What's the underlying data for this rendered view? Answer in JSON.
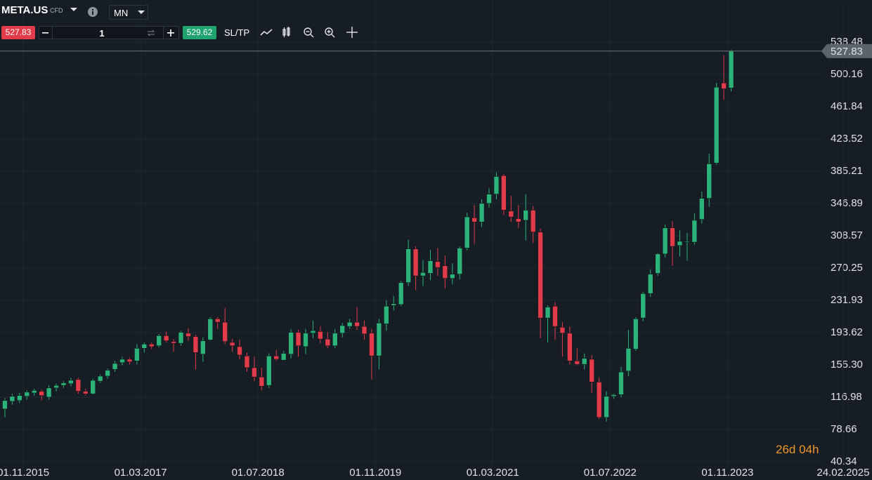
{
  "toolbar": {
    "symbol": "META.US",
    "tag": "CFD",
    "timeframe": "MN",
    "sell": "527.83",
    "quantity": "1",
    "buy": "529.62",
    "sltp": "SL/TP"
  },
  "chart_data": {
    "type": "candlestick",
    "up_color": "#2bb37a",
    "down_color": "#e23b4a",
    "grid": true,
    "last_price": 527.83,
    "countdown": "26d 04h",
    "x": [
      "01.08.2015",
      "01.09.2015",
      "01.10.2015",
      "01.11.2015",
      "01.12.2015",
      "01.01.2016",
      "01.02.2016",
      "01.03.2016",
      "01.04.2016",
      "01.05.2016",
      "01.06.2016",
      "01.07.2016",
      "01.08.2016",
      "01.09.2016",
      "01.10.2016",
      "01.11.2016",
      "01.12.2016",
      "01.01.2017",
      "01.02.2017",
      "01.03.2017",
      "01.04.2017",
      "01.05.2017",
      "01.06.2017",
      "01.07.2017",
      "01.08.2017",
      "01.09.2017",
      "01.10.2017",
      "01.11.2017",
      "01.12.2017",
      "01.01.2018",
      "01.02.2018",
      "01.03.2018",
      "01.04.2018",
      "01.05.2018",
      "01.06.2018",
      "01.07.2018",
      "01.08.2018",
      "01.09.2018",
      "01.10.2018",
      "01.11.2018",
      "01.12.2018",
      "01.01.2019",
      "01.02.2019",
      "01.03.2019",
      "01.04.2019",
      "01.05.2019",
      "01.06.2019",
      "01.07.2019",
      "01.08.2019",
      "01.09.2019",
      "01.10.2019",
      "01.11.2019",
      "01.12.2019",
      "01.01.2020",
      "01.02.2020",
      "01.03.2020",
      "01.04.2020",
      "01.05.2020",
      "01.06.2020",
      "01.07.2020",
      "01.08.2020",
      "01.09.2020",
      "01.10.2020",
      "01.11.2020",
      "01.12.2020",
      "01.01.2021",
      "01.02.2021",
      "01.03.2021",
      "01.04.2021",
      "01.05.2021",
      "01.06.2021",
      "01.07.2021",
      "01.08.2021",
      "01.09.2021",
      "01.10.2021",
      "01.11.2021",
      "01.12.2021",
      "01.01.2022",
      "01.02.2022",
      "01.03.2022",
      "01.04.2022",
      "01.05.2022",
      "01.06.2022",
      "01.07.2022",
      "01.08.2022",
      "01.09.2022",
      "01.10.2022",
      "01.11.2022",
      "01.12.2022",
      "01.01.2023",
      "01.02.2023",
      "01.03.2023",
      "01.04.2023",
      "01.05.2023",
      "01.06.2023",
      "01.07.2023",
      "01.08.2023",
      "01.09.2023",
      "01.10.2023",
      "01.11.2023"
    ],
    "open": [
      103,
      112,
      113,
      118,
      122,
      124,
      117,
      128,
      131,
      133,
      138,
      124,
      121,
      136,
      142,
      150,
      158,
      162,
      160,
      175,
      180,
      178,
      190,
      183,
      181,
      193,
      189,
      168,
      185,
      210,
      206,
      182,
      177,
      166,
      152,
      141,
      131,
      166,
      161,
      168,
      194,
      177,
      193,
      195,
      186,
      178,
      193,
      201,
      206,
      201,
      193,
      166,
      204,
      226,
      227,
      253,
      293,
      261,
      264,
      278,
      273,
      258,
      263,
      294,
      330,
      325,
      347,
      358,
      380,
      338,
      329,
      327,
      339,
      313,
      211,
      225,
      200,
      193,
      160,
      156,
      162,
      135,
      93,
      118,
      120,
      148,
      174,
      211,
      240,
      264,
      287,
      318,
      297,
      301,
      301,
      328,
      353,
      395,
      490,
      484
    ],
    "high": [
      116,
      121,
      122,
      125,
      127,
      126,
      131,
      133,
      136,
      140,
      140,
      127,
      139,
      144,
      151,
      160,
      165,
      164,
      180,
      182,
      182,
      192,
      195,
      186,
      196,
      199,
      191,
      188,
      212,
      212,
      223,
      186,
      185,
      170,
      165,
      152,
      169,
      173,
      172,
      198,
      197,
      198,
      208,
      201,
      194,
      198,
      205,
      210,
      224,
      208,
      198,
      210,
      232,
      237,
      255,
      304,
      296,
      280,
      292,
      294,
      285,
      276,
      296,
      336,
      345,
      352,
      365,
      384,
      382,
      356,
      345,
      358,
      344,
      317,
      226,
      230,
      206,
      201,
      175,
      169,
      167,
      140,
      124,
      121,
      153,
      197,
      212,
      242,
      269,
      288,
      322,
      326,
      315,
      312,
      335,
      361,
      406,
      490,
      523,
      528.9
    ],
    "low": [
      93,
      108,
      110,
      114,
      119,
      113,
      114,
      124,
      128,
      130,
      121,
      119,
      120,
      134,
      139,
      147,
      155,
      156,
      156,
      170,
      174,
      176,
      182,
      171,
      178,
      184,
      150,
      159,
      184,
      198,
      180,
      171,
      162,
      147,
      136,
      125,
      128,
      160,
      161,
      163,
      165,
      168,
      187,
      181,
      175,
      175,
      188,
      198,
      197,
      185,
      138,
      150,
      196,
      220,
      225,
      249,
      244,
      249,
      256,
      261,
      246,
      251,
      257,
      291,
      299,
      319,
      342,
      352,
      333,
      325,
      318,
      303,
      300,
      187,
      182,
      185,
      165,
      156,
      155,
      150,
      122,
      91,
      88,
      115,
      117,
      142,
      172,
      207,
      236,
      261,
      283,
      273,
      284,
      279,
      298,
      323,
      343,
      393,
      470,
      480
    ],
    "close": [
      113,
      118,
      119,
      123,
      125,
      119,
      128,
      131,
      134,
      137,
      124,
      121,
      137,
      142,
      149,
      157,
      162,
      159,
      175,
      180,
      177,
      190,
      184,
      181,
      194,
      189,
      170,
      184,
      210,
      206,
      183,
      178,
      167,
      152,
      141,
      130,
      166,
      162,
      169,
      194,
      178,
      193,
      196,
      186,
      178,
      193,
      202,
      206,
      201,
      192,
      166,
      205,
      225,
      228,
      253,
      293,
      261,
      265,
      279,
      271,
      258,
      263,
      294,
      331,
      325,
      347,
      358,
      379,
      339,
      331,
      325,
      339,
      313,
      211,
      224,
      201,
      193,
      160,
      156,
      163,
      135,
      93,
      118,
      120,
      147,
      175,
      210,
      240,
      263,
      287,
      318,
      296,
      302,
      302,
      327,
      353,
      394,
      485,
      483,
      527.83
    ],
    "xlim": [
      "26.07.2015",
      "28.11.2024"
    ],
    "xticks": [
      "01.11.2015",
      "01.03.2017",
      "01.07.2018",
      "01.11.2019",
      "01.03.2021",
      "01.07.2022",
      "01.11.2023",
      "24.02.2025"
    ],
    "ylim": [
      40.34,
      538.48
    ],
    "yticks": [
      538.48,
      500.16,
      461.84,
      423.52,
      385.21,
      346.89,
      308.57,
      270.25,
      231.93,
      193.62,
      {
        "value": 155.3,
        "label": "155.30"
      },
      116.98,
      78.66,
      40.34
    ]
  }
}
